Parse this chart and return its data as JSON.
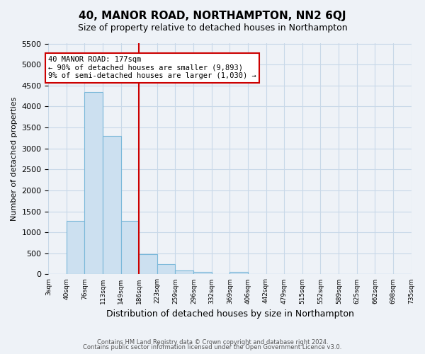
{
  "title": "40, MANOR ROAD, NORTHAMPTON, NN2 6QJ",
  "subtitle": "Size of property relative to detached houses in Northampton",
  "xlabel": "Distribution of detached houses by size in Northampton",
  "ylabel": "Number of detached properties",
  "bin_edges": [
    3,
    40,
    76,
    113,
    149,
    186,
    223,
    259,
    296,
    332,
    369,
    406,
    442,
    479,
    515,
    552,
    589,
    625,
    662,
    698,
    735
  ],
  "bin_counts": [
    0,
    1270,
    4340,
    3290,
    1280,
    480,
    240,
    90,
    55,
    0,
    55,
    0,
    0,
    0,
    0,
    0,
    0,
    0,
    0,
    0
  ],
  "bar_face_color": "#cce0f0",
  "bar_edge_color": "#7ab8d9",
  "vline_x": 186,
  "vline_color": "#cc0000",
  "annotation_title": "40 MANOR ROAD: 177sqm",
  "annotation_line1": "← 90% of detached houses are smaller (9,893)",
  "annotation_line2": "9% of semi-detached houses are larger (1,030) →",
  "annotation_box_edgecolor": "#cc0000",
  "ylim": [
    0,
    5500
  ],
  "yticks": [
    0,
    500,
    1000,
    1500,
    2000,
    2500,
    3000,
    3500,
    4000,
    4500,
    5000,
    5500
  ],
  "footer_line1": "Contains HM Land Registry data © Crown copyright and database right 2024.",
  "footer_line2": "Contains public sector information licensed under the Open Government Licence v3.0.",
  "grid_color": "#c8d8e8",
  "bg_color": "#eef2f7",
  "title_fontsize": 11,
  "subtitle_fontsize": 9,
  "ylabel_fontsize": 8,
  "xlabel_fontsize": 9
}
